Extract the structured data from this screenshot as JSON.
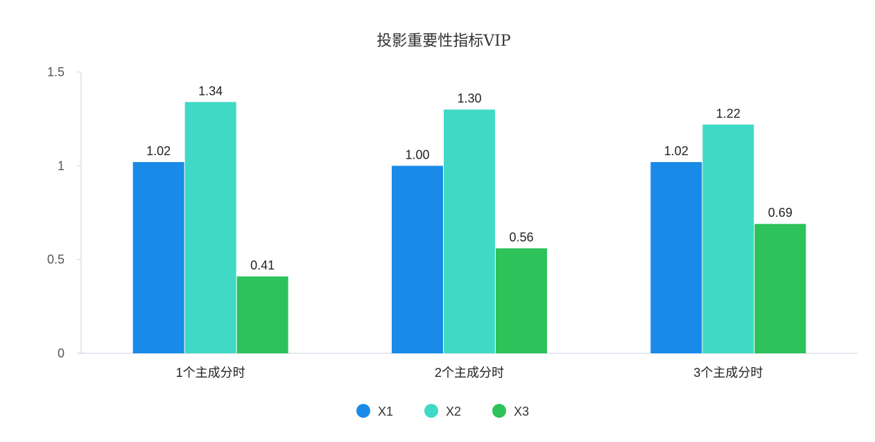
{
  "chart_data": {
    "type": "bar",
    "title": "投影重要性指标VIP",
    "xlabel": "",
    "ylabel": "",
    "categories": [
      "1个主成分时",
      "2个主成分时",
      "3个主成分时"
    ],
    "series": [
      {
        "name": "X1",
        "color": "#1a8ae8",
        "values": [
          1.02,
          1.0,
          1.02
        ],
        "labels": [
          "1.02",
          "1.00",
          "1.02"
        ]
      },
      {
        "name": "X2",
        "color": "#40d9c6",
        "values": [
          1.34,
          1.3,
          1.22
        ],
        "labels": [
          "1.34",
          "1.30",
          "1.22"
        ]
      },
      {
        "name": "X3",
        "color": "#2ec25a",
        "values": [
          0.41,
          0.56,
          0.69
        ],
        "labels": [
          "0.41",
          "0.56",
          "0.69"
        ]
      }
    ],
    "ylim": [
      0,
      1.5
    ],
    "yticks": [
      0,
      0.5,
      1,
      1.5
    ],
    "ytick_labels": [
      "0",
      "0.5",
      "1",
      "1.5"
    ],
    "grid": false,
    "legend_position": "bottom-center",
    "axis_color": "#c8d0e0"
  }
}
